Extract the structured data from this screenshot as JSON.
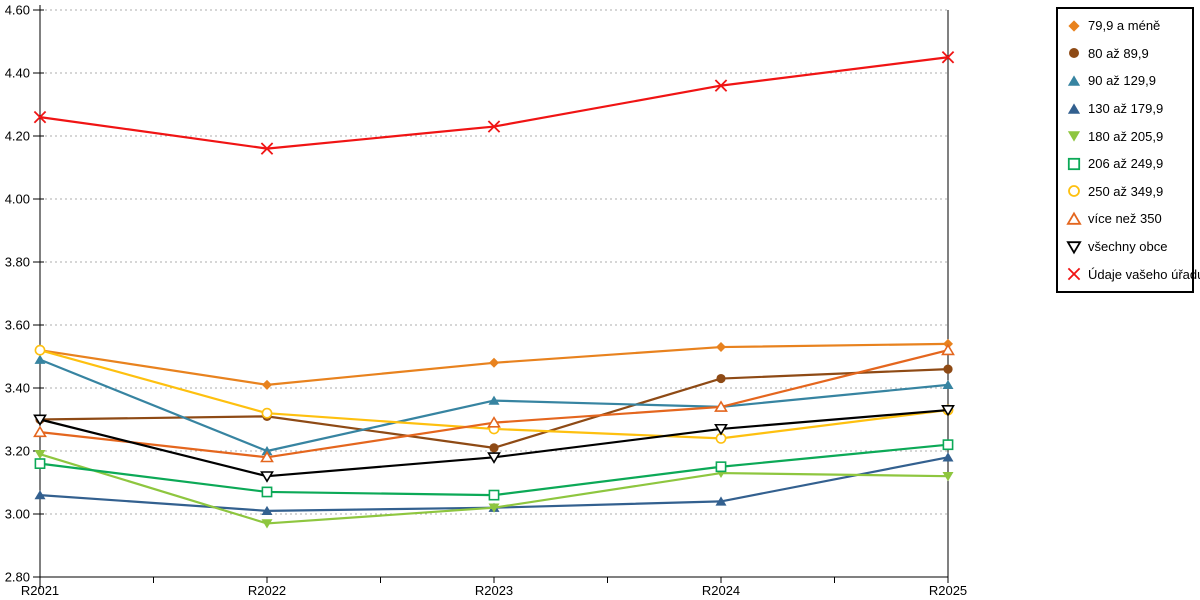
{
  "chart_data": {
    "type": "line",
    "title": "",
    "xlabel": "",
    "ylabel": "",
    "categories": [
      "R2021",
      "R2022",
      "R2023",
      "R2024",
      "R2025"
    ],
    "y_axis": {
      "min": 2.8,
      "max": 4.6,
      "tick_step": 0.2,
      "tick_labels": [
        "2.80",
        "3.00",
        "3.20",
        "3.40",
        "3.60",
        "3.80",
        "4.00",
        "4.20",
        "4.40",
        "4.60"
      ]
    },
    "grid": "horizontal-dotted",
    "legend_position": "top-right",
    "series": [
      {
        "name": "79,9 a méně",
        "color": "#E8821E",
        "marker": "diamond",
        "fill": "solid",
        "values": [
          3.52,
          3.41,
          3.48,
          3.53,
          3.54
        ]
      },
      {
        "name": "80 až 89,9",
        "color": "#8E4A15",
        "marker": "circle",
        "fill": "solid",
        "values": [
          3.3,
          3.31,
          3.21,
          3.43,
          3.46
        ]
      },
      {
        "name": "90 až 129,9",
        "color": "#3784A1",
        "marker": "triangle-up",
        "fill": "solid",
        "values": [
          3.49,
          3.2,
          3.36,
          3.34,
          3.41
        ]
      },
      {
        "name": "130 až 179,9",
        "color": "#33608F",
        "marker": "triangle-up",
        "fill": "solid",
        "values": [
          3.06,
          3.01,
          3.02,
          3.04,
          3.18
        ]
      },
      {
        "name": "180 až 205,9",
        "color": "#8EC63F",
        "marker": "triangle-down",
        "fill": "solid",
        "values": [
          3.19,
          2.97,
          3.02,
          3.13,
          3.12
        ]
      },
      {
        "name": "206 až 249,9",
        "color": "#0CA957",
        "marker": "square",
        "fill": "open",
        "values": [
          3.16,
          3.07,
          3.06,
          3.15,
          3.22
        ]
      },
      {
        "name": "250 až 349,9",
        "color": "#FEC00F",
        "marker": "circle",
        "fill": "open",
        "values": [
          3.52,
          3.32,
          3.27,
          3.24,
          3.33
        ]
      },
      {
        "name": "více než 350",
        "color": "#E4661E",
        "marker": "triangle-up",
        "fill": "open",
        "values": [
          3.26,
          3.18,
          3.29,
          3.34,
          3.52
        ]
      },
      {
        "name": "všechny obce",
        "color": "#000000",
        "marker": "triangle-down",
        "fill": "open",
        "values": [
          3.3,
          3.12,
          3.18,
          3.27,
          3.33
        ]
      },
      {
        "name": "Údaje vašeho úřadu",
        "color": "#F01414",
        "marker": "x",
        "fill": "open",
        "values": [
          4.26,
          4.16,
          4.23,
          4.36,
          4.45
        ]
      }
    ]
  }
}
